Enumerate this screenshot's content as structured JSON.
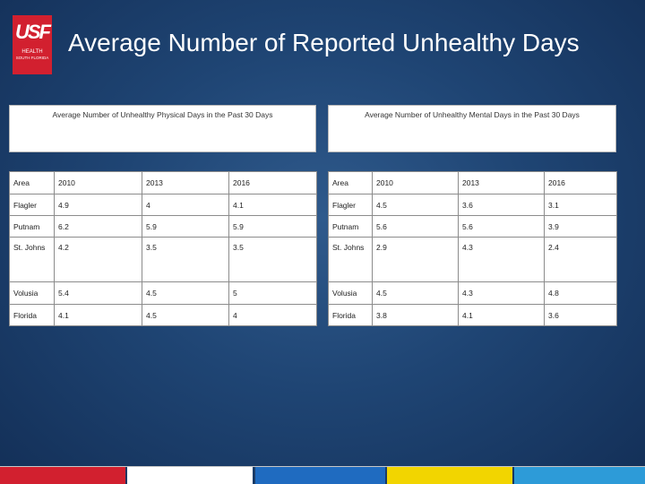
{
  "logo": {
    "mark": "USF",
    "line1": "HEALTH",
    "line2": "SOUTH FLORIDA"
  },
  "title": "Average Number of Reported Unhealthy Days",
  "physical": {
    "heading": "Average Number of Unhealthy Physical Days in the Past 30 Days",
    "columns": [
      "Area",
      "2010",
      "2013",
      "2016"
    ],
    "rows": [
      [
        "Flagler",
        "4.9",
        "4",
        "4.1"
      ],
      [
        "Putnam",
        "6.2",
        "5.9",
        "5.9"
      ],
      [
        "St. Johns",
        "4.2",
        "3.5",
        "3.5"
      ],
      [
        "Volusia",
        "5.4",
        "4.5",
        "5"
      ],
      [
        "Florida",
        "4.1",
        "4.5",
        "4"
      ]
    ]
  },
  "mental": {
    "heading": "Average Number of Unhealthy Mental Days in the Past 30 Days",
    "columns": [
      "Area",
      "2010",
      "2013",
      "2016"
    ],
    "rows": [
      [
        "Flagler",
        "4.5",
        "3.6",
        "3.1"
      ],
      [
        "Putnam",
        "5.6",
        "5.6",
        "3.9"
      ],
      [
        "St. Johns",
        "2.9",
        "4.3",
        "2.4"
      ],
      [
        "Volusia",
        "4.5",
        "4.3",
        "4.8"
      ],
      [
        "Florida",
        "3.8",
        "4.1",
        "3.6"
      ]
    ]
  },
  "colors": {
    "stripe": [
      "#d2202f",
      "#ffffff",
      "#1f6bc0",
      "#f2d500",
      "#9ed36a",
      "#2d9bd8"
    ]
  }
}
